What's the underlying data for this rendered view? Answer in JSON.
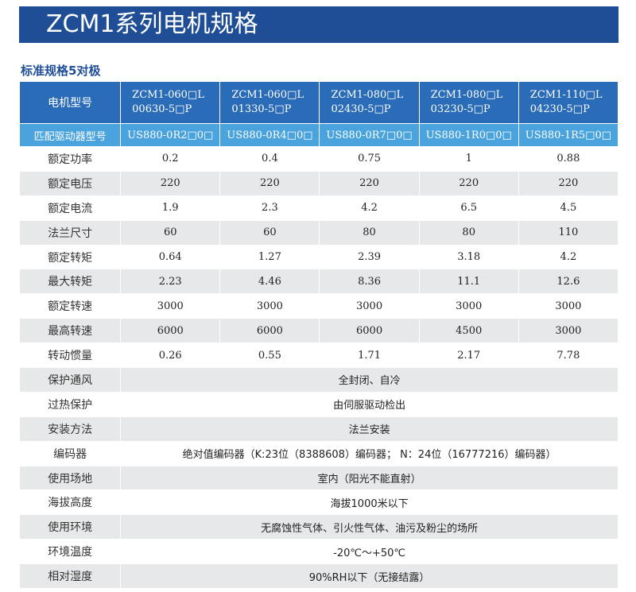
{
  "header": {
    "title": "ZCM1系列电机规格",
    "subtitle": "标准规格5对极"
  },
  "table": {
    "model_label": "电机型号",
    "models": [
      {
        "line1": "ZCM1-060□L",
        "line2": "00630-5□P"
      },
      {
        "line1": "ZCM1-060□L",
        "line2": "01330-5□P"
      },
      {
        "line1": "ZCM1-080□L",
        "line2": "02430-5□P"
      },
      {
        "line1": "ZCM1-080□L",
        "line2": "03230-5□P"
      },
      {
        "line1": "ZCM1-110□L",
        "line2": "04230-5□P"
      }
    ],
    "driver_label": "匹配驱动器型号",
    "drivers": [
      "US880-0R2□0□",
      "US880-0R4□0□",
      "US880-0R7□0□",
      "US880-1R0□0□",
      "US880-1R5□0□"
    ],
    "rows": [
      {
        "label": "额定功率",
        "values": [
          "0.2",
          "0.4",
          "0.75",
          "1",
          "0.88"
        ]
      },
      {
        "label": "额定电压",
        "values": [
          "220",
          "220",
          "220",
          "220",
          "220"
        ]
      },
      {
        "label": "额定电流",
        "values": [
          "1.9",
          "2.3",
          "4.2",
          "6.5",
          "4.5"
        ]
      },
      {
        "label": "法兰尺寸",
        "values": [
          "60",
          "60",
          "80",
          "80",
          "110"
        ]
      },
      {
        "label": "额定转矩",
        "values": [
          "0.64",
          "1.27",
          "2.39",
          "3.18",
          "4.2"
        ]
      },
      {
        "label": "最大转矩",
        "values": [
          "2.23",
          "4.46",
          "8.36",
          "11.1",
          "12.6"
        ]
      },
      {
        "label": "额定转速",
        "values": [
          "3000",
          "3000",
          "3000",
          "3000",
          "3000"
        ]
      },
      {
        "label": "最高转速",
        "values": [
          "6000",
          "6000",
          "6000",
          "4500",
          "3000"
        ]
      },
      {
        "label": "转动惯量",
        "values": [
          "0.26",
          "0.55",
          "1.71",
          "2.17",
          "7.78"
        ]
      }
    ],
    "span_rows": [
      {
        "label": "保护通风",
        "value": "全封闭、自冷"
      },
      {
        "label": "过热保护",
        "value": "由伺服驱动检出"
      },
      {
        "label": "安装方法",
        "value": "法兰安装"
      },
      {
        "label": "编码器",
        "value": "绝对值编码器（K:23位（8388608）编码器； N：24位（16777216）编码器）"
      },
      {
        "label": "使用场地",
        "value": "室内（阳光不能直射）"
      },
      {
        "label": "海拔高度",
        "value": "海拔1000米以下"
      },
      {
        "label": "使用环境",
        "value": "无腐蚀性气体、引火性气体、油污及粉尘的场所"
      },
      {
        "label": "环境温度",
        "value": "-20℃～+50℃"
      },
      {
        "label": "相对湿度",
        "value": "90%RH以下（无接结露）"
      }
    ]
  }
}
